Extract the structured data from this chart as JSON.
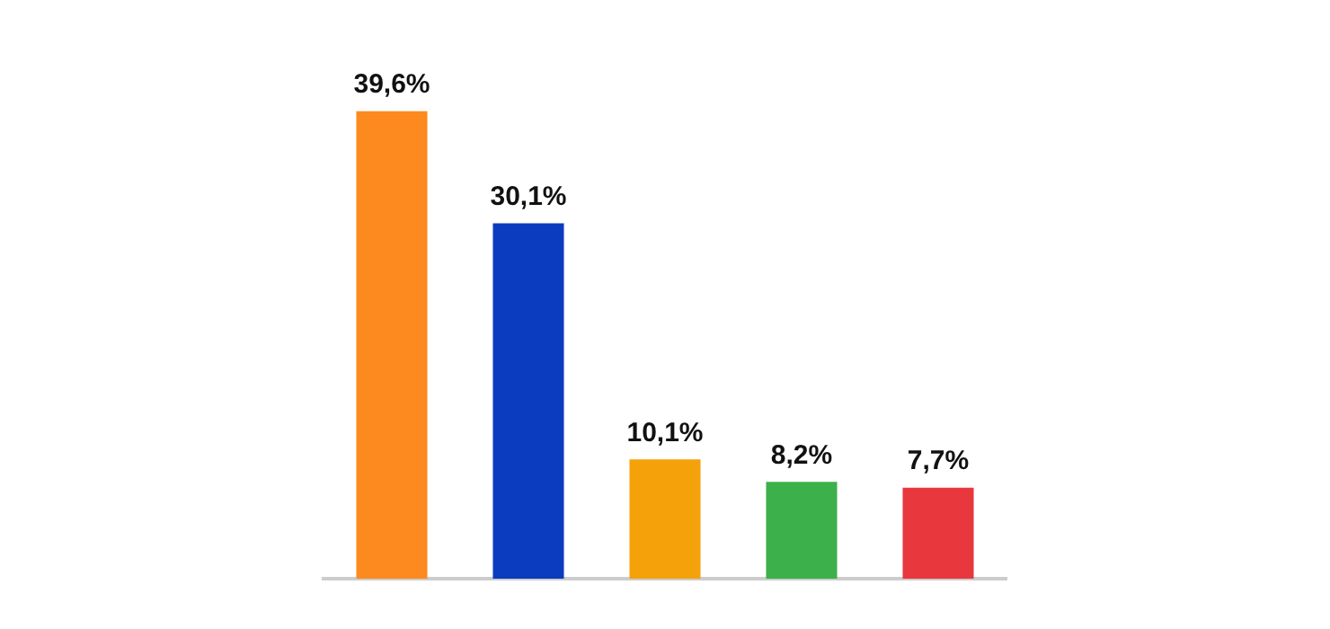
{
  "chart_data": {
    "type": "bar",
    "categories": [
      null,
      null,
      null,
      null,
      null
    ],
    "values": [
      39.6,
      30.1,
      10.1,
      8.2,
      7.7
    ],
    "colors": [
      "#fd8a1e",
      "#0b3bbf",
      "#f5a10a",
      "#3cb04a",
      "#e8373d"
    ],
    "value_labels": [
      "39,6%",
      "30,1%",
      "10,1%",
      "8,2%",
      "7,7%"
    ],
    "legend": false
  }
}
